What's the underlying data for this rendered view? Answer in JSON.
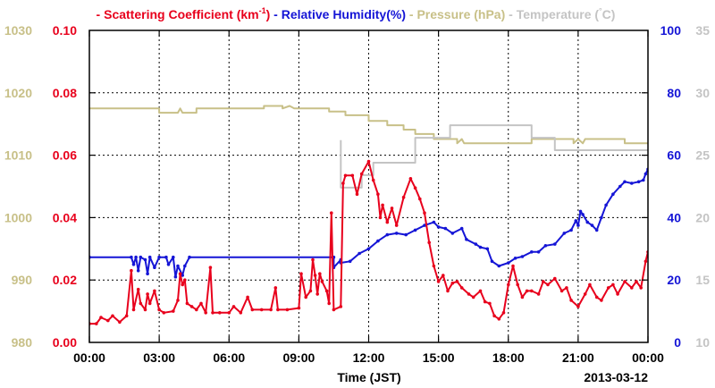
{
  "chart_data": {
    "type": "line",
    "title": "",
    "date_label": "2013-03-12",
    "xlabel": "Time (JST)",
    "x_ticks": [
      "00:00",
      "03:00",
      "06:00",
      "09:00",
      "12:00",
      "15:00",
      "18:00",
      "21:00",
      "00:00"
    ],
    "grid": true,
    "legend": [
      {
        "dash": "-",
        "label": "Scattering Coefficient (km",
        "sup": "-1",
        "close": ")",
        "color": "#e8001c"
      },
      {
        "dash": "-",
        "label": "Relative Humidity(%)",
        "color": "#1515d6"
      },
      {
        "dash": "-",
        "label": "Pressure (hPa)",
        "color": "#c8c088"
      },
      {
        "dash": "-",
        "label": "Temperature (",
        "sup": "°",
        "close": "C)",
        "color": "#c4c4c4"
      }
    ],
    "axes": {
      "scattering": {
        "side": "left-inner",
        "ylim": [
          0.0,
          0.1
        ],
        "ticks": [
          "0.00",
          "0.02",
          "0.04",
          "0.06",
          "0.08",
          "0.10"
        ],
        "color": "#e8001c"
      },
      "pressure": {
        "side": "left-outer",
        "ylim": [
          980,
          1030
        ],
        "ticks": [
          "980",
          "990",
          "1000",
          "1010",
          "1020",
          "1030"
        ],
        "color": "#c8c088"
      },
      "humidity": {
        "side": "right-inner",
        "ylim": [
          0,
          100
        ],
        "ticks": [
          "0",
          "20",
          "40",
          "60",
          "80",
          "100"
        ],
        "color": "#1515d6"
      },
      "temperature": {
        "side": "right-outer",
        "ylim": [
          10,
          35
        ],
        "ticks": [
          "10",
          "15",
          "20",
          "25",
          "30",
          "35"
        ],
        "color": "#c4c4c4"
      }
    },
    "series": [
      {
        "name": "Pressure (hPa)",
        "axis": "pressure",
        "color": "#c8c088",
        "markers": false,
        "points": [
          [
            0,
            1017.5
          ],
          [
            3.0,
            1017.5
          ],
          [
            3.0,
            1016.8
          ],
          [
            3.8,
            1016.8
          ],
          [
            3.9,
            1017.5
          ],
          [
            4.0,
            1016.8
          ],
          [
            4.6,
            1016.8
          ],
          [
            4.6,
            1017.5
          ],
          [
            7.5,
            1017.5
          ],
          [
            7.5,
            1017.9
          ],
          [
            8.3,
            1017.9
          ],
          [
            8.3,
            1017.5
          ],
          [
            8.6,
            1017.9
          ],
          [
            8.8,
            1017.5
          ],
          [
            10.3,
            1017.5
          ],
          [
            10.3,
            1017.0
          ],
          [
            11.0,
            1017.0
          ],
          [
            11.0,
            1016.4
          ],
          [
            12.0,
            1016.4
          ],
          [
            12.0,
            1015.5
          ],
          [
            12.8,
            1015.5
          ],
          [
            12.8,
            1014.8
          ],
          [
            13.5,
            1014.8
          ],
          [
            13.5,
            1014.1
          ],
          [
            14.0,
            1014.1
          ],
          [
            14.0,
            1013.4
          ],
          [
            14.8,
            1013.4
          ],
          [
            14.8,
            1012.6
          ],
          [
            15.8,
            1012.6
          ],
          [
            15.8,
            1011.9
          ],
          [
            16.0,
            1012.6
          ],
          [
            16.1,
            1011.9
          ],
          [
            19.0,
            1011.9
          ],
          [
            19.0,
            1012.6
          ],
          [
            20.8,
            1012.6
          ],
          [
            20.8,
            1011.9
          ],
          [
            21.0,
            1012.6
          ],
          [
            21.2,
            1011.9
          ],
          [
            21.3,
            1012.6
          ],
          [
            23.0,
            1012.6
          ],
          [
            23.0,
            1011.9
          ],
          [
            24.0,
            1011.9
          ]
        ]
      },
      {
        "name": "Temperature (°C)",
        "axis": "temperature",
        "color": "#c4c4c4",
        "markers": false,
        "points": [
          [
            10.8,
            26.2
          ],
          [
            10.8,
            22.4
          ],
          [
            11.7,
            22.4
          ],
          [
            11.7,
            23.4
          ],
          [
            12.2,
            23.4
          ],
          [
            12.2,
            24.4
          ],
          [
            14.0,
            24.4
          ],
          [
            14.0,
            26.4
          ],
          [
            15.5,
            26.4
          ],
          [
            15.5,
            27.4
          ],
          [
            19.0,
            27.4
          ],
          [
            19.0,
            26.4
          ],
          [
            20.0,
            26.4
          ],
          [
            20.0,
            25.4
          ],
          [
            24.0,
            25.4
          ]
        ]
      },
      {
        "name": "Relative Humidity(%)",
        "axis": "humidity",
        "color": "#1515d6",
        "markers": true,
        "points": [
          [
            0,
            27.3
          ],
          [
            1.8,
            27.3
          ],
          [
            1.9,
            25
          ],
          [
            2.0,
            27.3
          ],
          [
            2.1,
            23
          ],
          [
            2.2,
            27.3
          ],
          [
            2.4,
            26.5
          ],
          [
            2.5,
            22
          ],
          [
            2.6,
            27.3
          ],
          [
            2.8,
            24
          ],
          [
            3.0,
            27.3
          ],
          [
            3.3,
            27.3
          ],
          [
            3.4,
            25
          ],
          [
            3.6,
            27.3
          ],
          [
            3.7,
            21
          ],
          [
            3.8,
            24.5
          ],
          [
            4.0,
            21.5
          ],
          [
            4.1,
            24.5
          ],
          [
            4.3,
            27.3
          ],
          [
            10.5,
            27.3
          ],
          [
            10.5,
            24
          ],
          [
            10.8,
            26.5
          ],
          [
            10.8,
            25.5
          ],
          [
            11.2,
            26
          ],
          [
            11.6,
            28.5
          ],
          [
            12.0,
            30
          ],
          [
            12.4,
            32.5
          ],
          [
            12.8,
            34.5
          ],
          [
            13.2,
            35
          ],
          [
            13.6,
            34.5
          ],
          [
            14.0,
            36
          ],
          [
            14.4,
            37.5
          ],
          [
            14.8,
            38.5
          ],
          [
            15.0,
            37
          ],
          [
            15.3,
            36.5
          ],
          [
            15.6,
            35
          ],
          [
            16.0,
            36.5
          ],
          [
            16.2,
            33
          ],
          [
            16.6,
            31.5
          ],
          [
            16.8,
            30.5
          ],
          [
            17.1,
            30
          ],
          [
            17.3,
            26
          ],
          [
            17.6,
            24.5
          ],
          [
            18.0,
            25.5
          ],
          [
            18.3,
            27
          ],
          [
            18.6,
            27.5
          ],
          [
            19.0,
            29
          ],
          [
            19.3,
            29
          ],
          [
            19.6,
            31
          ],
          [
            20.0,
            31.5
          ],
          [
            20.4,
            35
          ],
          [
            20.7,
            36
          ],
          [
            20.9,
            39
          ],
          [
            21.0,
            37.5
          ],
          [
            21.1,
            42
          ],
          [
            21.2,
            41
          ],
          [
            21.4,
            38.5
          ],
          [
            21.6,
            37.5
          ],
          [
            21.8,
            36
          ],
          [
            22.0,
            40
          ],
          [
            22.2,
            44
          ],
          [
            22.5,
            47.5
          ],
          [
            22.8,
            50
          ],
          [
            23.0,
            51.5
          ],
          [
            23.3,
            51
          ],
          [
            23.6,
            51.5
          ],
          [
            23.8,
            52
          ],
          [
            23.9,
            54
          ],
          [
            24.0,
            55.5
          ]
        ]
      },
      {
        "name": "Scattering Coefficient (km-1)",
        "axis": "scattering",
        "color": "#e8001c",
        "markers": true,
        "points": [
          [
            0.0,
            0.006
          ],
          [
            0.3,
            0.006
          ],
          [
            0.5,
            0.008
          ],
          [
            0.8,
            0.007
          ],
          [
            1.0,
            0.0085
          ],
          [
            1.3,
            0.0065
          ],
          [
            1.6,
            0.0085
          ],
          [
            1.8,
            0.023
          ],
          [
            1.9,
            0.0105
          ],
          [
            2.1,
            0.017
          ],
          [
            2.2,
            0.0125
          ],
          [
            2.4,
            0.0105
          ],
          [
            2.5,
            0.0155
          ],
          [
            2.6,
            0.0125
          ],
          [
            2.8,
            0.0165
          ],
          [
            3.0,
            0.0105
          ],
          [
            3.2,
            0.0095
          ],
          [
            3.6,
            0.01
          ],
          [
            3.8,
            0.0135
          ],
          [
            3.9,
            0.022
          ],
          [
            4.0,
            0.0185
          ],
          [
            4.1,
            0.02
          ],
          [
            4.2,
            0.0125
          ],
          [
            4.4,
            0.0115
          ],
          [
            4.6,
            0.0105
          ],
          [
            4.8,
            0.0125
          ],
          [
            5.0,
            0.0095
          ],
          [
            5.2,
            0.024
          ],
          [
            5.3,
            0.0095
          ],
          [
            5.6,
            0.0095
          ],
          [
            6.0,
            0.0095
          ],
          [
            6.2,
            0.0115
          ],
          [
            6.5,
            0.0095
          ],
          [
            6.8,
            0.0145
          ],
          [
            7.0,
            0.0105
          ],
          [
            7.4,
            0.0105
          ],
          [
            7.8,
            0.0105
          ],
          [
            8.0,
            0.0175
          ],
          [
            8.1,
            0.0105
          ],
          [
            8.5,
            0.0105
          ],
          [
            9.0,
            0.011
          ],
          [
            9.1,
            0.022
          ],
          [
            9.3,
            0.0145
          ],
          [
            9.5,
            0.0165
          ],
          [
            9.6,
            0.0265
          ],
          [
            9.7,
            0.0215
          ],
          [
            9.8,
            0.0155
          ],
          [
            9.9,
            0.022
          ],
          [
            10.0,
            0.0195
          ],
          [
            10.2,
            0.0165
          ],
          [
            10.3,
            0.0125
          ],
          [
            10.4,
            0.0415
          ],
          [
            10.5,
            0.0105
          ],
          [
            10.8,
            0.0115
          ],
          [
            10.9,
            0.051
          ],
          [
            11.0,
            0.0535
          ],
          [
            11.3,
            0.0535
          ],
          [
            11.5,
            0.0475
          ],
          [
            11.7,
            0.054
          ],
          [
            12.0,
            0.058
          ],
          [
            12.2,
            0.052
          ],
          [
            12.4,
            0.0475
          ],
          [
            12.5,
            0.04
          ],
          [
            12.6,
            0.044
          ],
          [
            12.8,
            0.0385
          ],
          [
            13.0,
            0.043
          ],
          [
            13.2,
            0.0375
          ],
          [
            13.5,
            0.0465
          ],
          [
            13.8,
            0.0525
          ],
          [
            14.0,
            0.0495
          ],
          [
            14.2,
            0.046
          ],
          [
            14.4,
            0.0415
          ],
          [
            14.6,
            0.032
          ],
          [
            14.8,
            0.0245
          ],
          [
            15.0,
            0.0195
          ],
          [
            15.2,
            0.0215
          ],
          [
            15.4,
            0.0165
          ],
          [
            15.6,
            0.019
          ],
          [
            15.8,
            0.0195
          ],
          [
            16.0,
            0.0175
          ],
          [
            16.3,
            0.0155
          ],
          [
            16.5,
            0.0145
          ],
          [
            16.8,
            0.0165
          ],
          [
            17.0,
            0.013
          ],
          [
            17.2,
            0.0125
          ],
          [
            17.4,
            0.0085
          ],
          [
            17.6,
            0.0075
          ],
          [
            17.8,
            0.0095
          ],
          [
            18.0,
            0.0185
          ],
          [
            18.2,
            0.0245
          ],
          [
            18.4,
            0.0185
          ],
          [
            18.6,
            0.0145
          ],
          [
            18.8,
            0.0165
          ],
          [
            19.0,
            0.0165
          ],
          [
            19.3,
            0.0155
          ],
          [
            19.5,
            0.0195
          ],
          [
            19.7,
            0.0185
          ],
          [
            20.0,
            0.0205
          ],
          [
            20.3,
            0.0165
          ],
          [
            20.5,
            0.0175
          ],
          [
            20.7,
            0.0135
          ],
          [
            21.0,
            0.0115
          ],
          [
            21.3,
            0.0155
          ],
          [
            21.5,
            0.0185
          ],
          [
            21.8,
            0.0145
          ],
          [
            22.0,
            0.0135
          ],
          [
            22.3,
            0.0175
          ],
          [
            22.5,
            0.0185
          ],
          [
            22.7,
            0.0155
          ],
          [
            23.0,
            0.0195
          ],
          [
            23.3,
            0.0175
          ],
          [
            23.5,
            0.0195
          ],
          [
            23.7,
            0.0175
          ],
          [
            23.9,
            0.026
          ],
          [
            24.0,
            0.029
          ]
        ]
      }
    ]
  }
}
